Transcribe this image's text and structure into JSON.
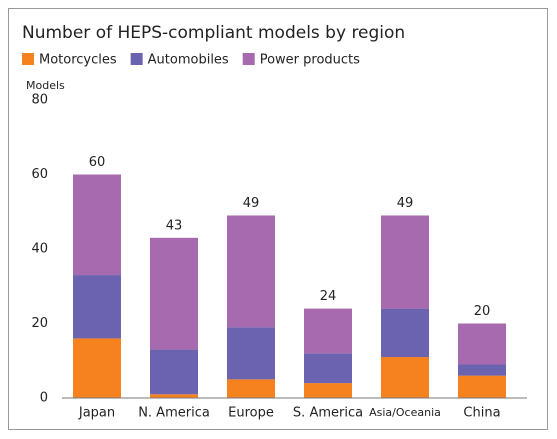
{
  "chart_data": {
    "type": "stacked_bar",
    "title": "Number of HEPS-compliant models by region",
    "y_label": "Models",
    "categories": [
      "Japan",
      "N. America",
      "Europe",
      "S. America",
      "Asia/Oceania",
      "China"
    ],
    "series": [
      {
        "name": "Motorcycles",
        "color": "#f5821f",
        "values": [
          16,
          1,
          5,
          4,
          11,
          6
        ]
      },
      {
        "name": "Automobiles",
        "color": "#6b62b0",
        "values": [
          17,
          12,
          14,
          8,
          13,
          3
        ]
      },
      {
        "name": "Power products",
        "color": "#a86aae",
        "values": [
          27,
          30,
          30,
          12,
          25,
          11
        ]
      }
    ],
    "totals": [
      60,
      43,
      49,
      24,
      49,
      20
    ],
    "ylim": [
      0,
      80
    ],
    "yticks": [
      0,
      20,
      40,
      60,
      80
    ],
    "grid": false
  }
}
